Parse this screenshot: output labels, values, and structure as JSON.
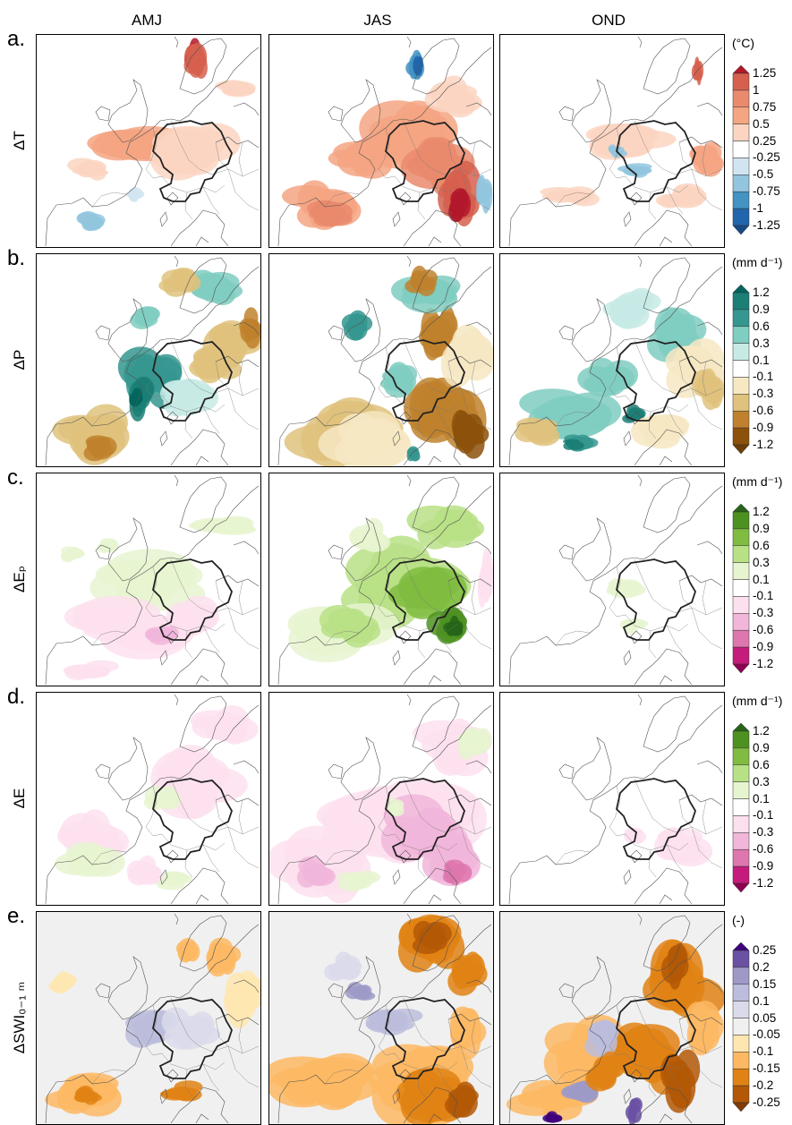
{
  "columns": [
    "AMJ",
    "JAS",
    "OND"
  ],
  "rows": [
    {
      "letter": "a.",
      "variable": "ΔT",
      "unit": "(°C)",
      "ticks": [
        "1.25",
        "1",
        "0.75",
        "0.5",
        "0.25",
        "-0.25",
        "-0.5",
        "-0.75",
        "-1",
        "-1.25"
      ],
      "colors": [
        "#b2182b",
        "#d6604d",
        "#ea8a6c",
        "#f4a582",
        "#fbd5c2",
        "#ffffff",
        "#d1e5f0",
        "#92c5de",
        "#4393c3",
        "#2166ac",
        "#174a85"
      ]
    },
    {
      "letter": "b.",
      "variable": "ΔP",
      "unit": "(mm d⁻¹)",
      "ticks": [
        "1.2",
        "0.9",
        "0.6",
        "0.3",
        "0.1",
        "-0.1",
        "-0.3",
        "-0.6",
        "-0.9",
        "-1.2"
      ],
      "colors": [
        "#01665e",
        "#1b7f76",
        "#35978f",
        "#80cdc1",
        "#c7eae5",
        "#ffffff",
        "#f6e8c3",
        "#dfc27d",
        "#bf812d",
        "#8c510a",
        "#6b3d08"
      ]
    },
    {
      "letter": "c.",
      "variable": "ΔEₚ",
      "unit": "(mm d⁻¹)",
      "ticks": [
        "1.2",
        "0.9",
        "0.6",
        "0.3",
        "0.1",
        "-0.1",
        "-0.3",
        "-0.6",
        "-0.9",
        "-1.2"
      ],
      "colors": [
        "#276419",
        "#4d9221",
        "#7fbc41",
        "#b8e186",
        "#e6f5d0",
        "#ffffff",
        "#fde0ef",
        "#f1b6da",
        "#de77ae",
        "#c51b7d",
        "#8e0152"
      ]
    },
    {
      "letter": "d.",
      "variable": "ΔE",
      "unit": "(mm d⁻¹)",
      "ticks": [
        "1.2",
        "0.9",
        "0.6",
        "0.3",
        "0.1",
        "-0.1",
        "-0.3",
        "-0.6",
        "-0.9",
        "-1.2"
      ],
      "colors": [
        "#276419",
        "#4d9221",
        "#7fbc41",
        "#b8e186",
        "#e6f5d0",
        "#ffffff",
        "#fde0ef",
        "#f1b6da",
        "#de77ae",
        "#c51b7d",
        "#8e0152"
      ]
    },
    {
      "letter": "e.",
      "variable": "ΔSWI₀₋₁ ₘ",
      "unit": "(-)",
      "ticks": [
        "0.25",
        "0.2",
        "0.15",
        "0.1",
        "0.05",
        "-0.05",
        "-0.1",
        "-0.15",
        "-0.2",
        "-0.25"
      ],
      "colors": [
        "#3f007d",
        "#6a51a3",
        "#9e9ac8",
        "#bcbddc",
        "#dadaeb",
        "#f0f0f0",
        "#fee6b0",
        "#fdb863",
        "#e08214",
        "#b35806",
        "#7f3b08"
      ]
    }
  ]
}
